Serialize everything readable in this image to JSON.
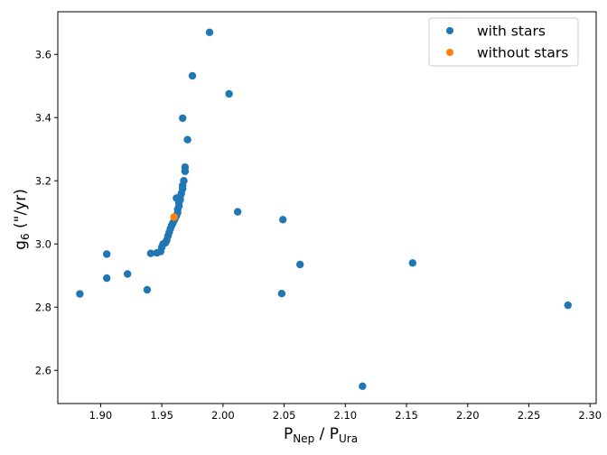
{
  "chart_data": {
    "type": "scatter",
    "xlabel": {
      "main": "P",
      "sub1": "Nep",
      "sep": " / P",
      "sub2": "Ura"
    },
    "ylabel": {
      "main": "g",
      "sub": "6",
      "rest": " (\"/yr)"
    },
    "xlim": [
      1.865,
      2.305
    ],
    "ylim": [
      2.495,
      3.735
    ],
    "xticks": [
      1.9,
      1.95,
      2.0,
      2.05,
      2.1,
      2.15,
      2.2,
      2.25,
      2.3
    ],
    "xtick_labels": [
      "1.90",
      "1.95",
      "2.00",
      "2.05",
      "2.10",
      "2.15",
      "2.20",
      "2.25",
      "2.30"
    ],
    "yticks": [
      2.6,
      2.8,
      3.0,
      3.2,
      3.4,
      3.6
    ],
    "ytick_labels": [
      "2.6",
      "2.8",
      "3.0",
      "3.2",
      "3.4",
      "3.6"
    ],
    "grid": false,
    "legend_position": "top-right",
    "series": [
      {
        "name": "with stars",
        "color": "#1f77b4",
        "points": [
          [
            1.883,
            2.842
          ],
          [
            1.905,
            2.892
          ],
          [
            1.905,
            2.968
          ],
          [
            1.922,
            2.905
          ],
          [
            1.938,
            2.855
          ],
          [
            1.941,
            2.97
          ],
          [
            1.946,
            2.972
          ],
          [
            1.949,
            2.976
          ],
          [
            1.95,
            2.99
          ],
          [
            1.951,
            3.0
          ],
          [
            1.953,
            3.004
          ],
          [
            1.954,
            3.012
          ],
          [
            1.955,
            3.025
          ],
          [
            1.956,
            3.037
          ],
          [
            1.957,
            3.048
          ],
          [
            1.958,
            3.058
          ],
          [
            1.959,
            3.066
          ],
          [
            1.96,
            3.074
          ],
          [
            1.961,
            3.082
          ],
          [
            1.962,
            3.09
          ],
          [
            1.963,
            3.1
          ],
          [
            1.963,
            3.11
          ],
          [
            1.964,
            3.12
          ],
          [
            1.964,
            3.13
          ],
          [
            1.965,
            3.14
          ],
          [
            1.965,
            3.15
          ],
          [
            1.962,
            3.145
          ],
          [
            1.966,
            3.16
          ],
          [
            1.967,
            3.175
          ],
          [
            1.967,
            3.185
          ],
          [
            1.968,
            3.2
          ],
          [
            1.969,
            3.23
          ],
          [
            1.969,
            3.243
          ],
          [
            1.971,
            3.33
          ],
          [
            1.967,
            3.398
          ],
          [
            1.975,
            3.532
          ],
          [
            1.989,
            3.67
          ],
          [
            2.005,
            3.475
          ],
          [
            2.012,
            3.102
          ],
          [
            2.049,
            3.077
          ],
          [
            2.048,
            2.843
          ],
          [
            2.063,
            2.935
          ],
          [
            2.114,
            2.55
          ],
          [
            2.155,
            2.94
          ],
          [
            2.282,
            2.806
          ]
        ]
      },
      {
        "name": "without stars",
        "color": "#ff7f0e",
        "points": [
          [
            1.96,
            3.085
          ]
        ]
      }
    ]
  }
}
